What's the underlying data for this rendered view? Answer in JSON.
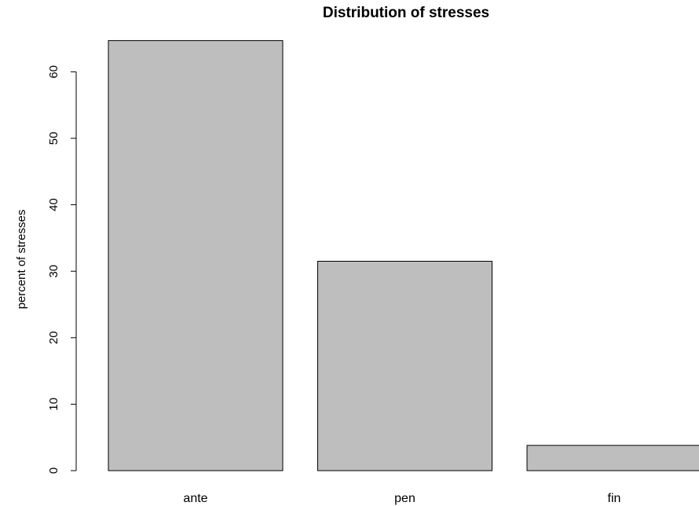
{
  "chart_data": {
    "type": "bar",
    "title": "Distribution of stresses",
    "xlabel": "",
    "ylabel": "percent of stresses",
    "categories": [
      "ante",
      "pen",
      "fin"
    ],
    "values": [
      64.7,
      31.5,
      3.8
    ],
    "ylim": [
      0,
      65
    ],
    "yticks": [
      0,
      10,
      20,
      30,
      40,
      50,
      60
    ],
    "grid": false,
    "bar_color": "#bebebe",
    "bar_border_color": "#000000"
  }
}
